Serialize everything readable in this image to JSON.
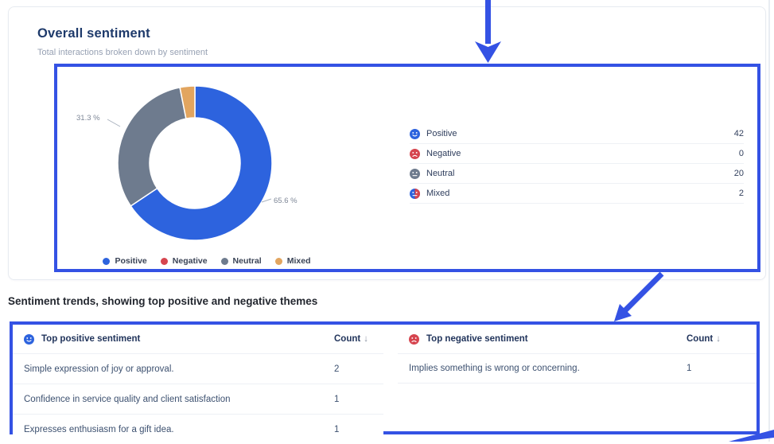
{
  "colors": {
    "annotation": "#3452e4",
    "positive": "#2d63de",
    "negative": "#d6454f",
    "neutral": "#6e7b8e",
    "mixed": "#e2a55f"
  },
  "card": {
    "title": "Overall sentiment",
    "subtitle": "Total interactions broken down by sentiment"
  },
  "chart_data": {
    "type": "pie",
    "donut": true,
    "title": "Overall sentiment",
    "categories": [
      "Positive",
      "Negative",
      "Neutral",
      "Mixed"
    ],
    "category_keys": [
      "positive",
      "negative",
      "neutral",
      "mixed"
    ],
    "values": [
      42,
      0,
      20,
      2
    ],
    "percent_labels": {
      "positive": "65.6 %",
      "neutral": "31.3 %"
    },
    "legend_position": "bottom"
  },
  "summary": {
    "rows": [
      {
        "icon": "positive-face-icon",
        "label": "Positive",
        "value": "42"
      },
      {
        "icon": "negative-face-icon",
        "label": "Negative",
        "value": "0"
      },
      {
        "icon": "neutral-face-icon",
        "label": "Neutral",
        "value": "20"
      },
      {
        "icon": "mixed-face-icon",
        "label": "Mixed",
        "value": "2"
      }
    ]
  },
  "trends": {
    "title": "Sentiment trends, showing top positive and negative themes",
    "count_header": "Count",
    "sort_icon": "↓",
    "positive_table": {
      "header": "Top positive sentiment",
      "rows": [
        {
          "theme": "Simple expression of joy or approval.",
          "count": "2"
        },
        {
          "theme": "Confidence in service quality and client satisfaction",
          "count": "1"
        },
        {
          "theme": "Expresses enthusiasm for a gift idea.",
          "count": "1"
        }
      ]
    },
    "negative_table": {
      "header": "Top negative sentiment",
      "rows": [
        {
          "theme": "Implies something is wrong or concerning.",
          "count": "1"
        }
      ]
    }
  }
}
